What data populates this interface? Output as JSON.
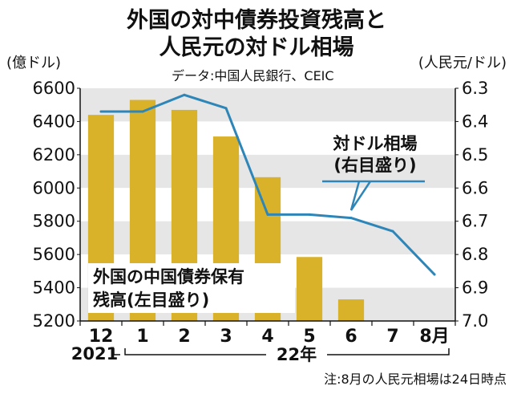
{
  "chart_data": {
    "type": "bar",
    "title_lines": [
      "外国の対中債券投資残高と",
      "人民元の対ドル相場"
    ],
    "source": "データ:中国人民銀行、CEIC",
    "categories": [
      "12",
      "1",
      "2",
      "3",
      "4",
      "5",
      "6",
      "7",
      "8月"
    ],
    "year_labels": {
      "prev": "2021",
      "current": "22年"
    },
    "left_axis": {
      "unit": "(億ドル)",
      "ticks": [
        "6600",
        "6400",
        "6200",
        "6000",
        "5800",
        "5600",
        "5400",
        "5200"
      ],
      "ylim": [
        5200,
        6600
      ]
    },
    "right_axis": {
      "unit": "(人民元/ドル)",
      "ticks": [
        "6.3",
        "6.4",
        "6.5",
        "6.6",
        "6.7",
        "6.8",
        "6.9",
        "7.0"
      ],
      "ylim": [
        6.3,
        7.0
      ],
      "inverted": true
    },
    "series": [
      {
        "name": "外国の中国債券保有残高(左目盛り)",
        "label_lines": [
          "外国の中国債券保有",
          "残高(左目盛り)"
        ],
        "type": "bar",
        "axis": "left",
        "color": "#d9b22a",
        "values": [
          6440,
          6530,
          6470,
          6310,
          6065,
          5585,
          5330,
          null,
          null
        ]
      },
      {
        "name": "対ドル相場(右目盛り)",
        "label_lines": [
          "対ドル相場",
          "(右目盛り)"
        ],
        "type": "line",
        "axis": "right",
        "color": "#2e86b8",
        "values": [
          6.37,
          6.37,
          6.32,
          6.36,
          6.68,
          6.68,
          6.69,
          6.73,
          6.86
        ]
      }
    ],
    "note": "注:8月の人民元相場は24日時点",
    "colors": {
      "band_gray": "#e6e6e6",
      "bar": "#d9b22a",
      "line": "#2e86b8"
    }
  }
}
